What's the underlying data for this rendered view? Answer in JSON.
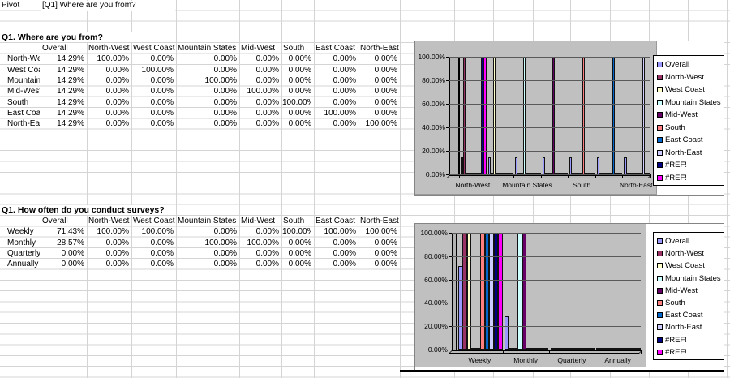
{
  "row1": {
    "cell_a": "Pivot",
    "cell_b": "[Q1] Where are you from?"
  },
  "tables": [
    {
      "title": "Q1. Where are you from?",
      "columns": [
        "Overall",
        "North-West",
        "West Coast",
        "Mountain States",
        "Mid-West",
        "South",
        "East Coast",
        "North-East"
      ],
      "rows": [
        {
          "label": "North-West",
          "values": [
            "14.29%",
            "100.00%",
            "0.00%",
            "0.00%",
            "0.00%",
            "0.00%",
            "0.00%",
            "0.00%"
          ]
        },
        {
          "label": "West Coast",
          "values": [
            "14.29%",
            "0.00%",
            "100.00%",
            "0.00%",
            "0.00%",
            "0.00%",
            "0.00%",
            "0.00%"
          ]
        },
        {
          "label": "Mountain States",
          "values": [
            "14.29%",
            "0.00%",
            "0.00%",
            "100.00%",
            "0.00%",
            "0.00%",
            "0.00%",
            "0.00%"
          ]
        },
        {
          "label": "Mid-West",
          "values": [
            "14.29%",
            "0.00%",
            "0.00%",
            "0.00%",
            "100.00%",
            "0.00%",
            "0.00%",
            "0.00%"
          ]
        },
        {
          "label": "South",
          "values": [
            "14.29%",
            "0.00%",
            "0.00%",
            "0.00%",
            "0.00%",
            "100.00%",
            "0.00%",
            "0.00%"
          ]
        },
        {
          "label": "East Coast",
          "values": [
            "14.29%",
            "0.00%",
            "0.00%",
            "0.00%",
            "0.00%",
            "0.00%",
            "100.00%",
            "0.00%"
          ]
        },
        {
          "label": "North-East",
          "values": [
            "14.29%",
            "0.00%",
            "0.00%",
            "0.00%",
            "0.00%",
            "0.00%",
            "0.00%",
            "100.00%"
          ]
        }
      ]
    },
    {
      "title": "Q1. How often do you conduct surveys?",
      "columns": [
        "Overall",
        "North-West",
        "West Coast",
        "Mountain States",
        "Mid-West",
        "South",
        "East Coast",
        "North-East"
      ],
      "rows": [
        {
          "label": "Weekly",
          "values": [
            "71.43%",
            "100.00%",
            "100.00%",
            "0.00%",
            "0.00%",
            "100.00%",
            "100.00%",
            "100.00%"
          ]
        },
        {
          "label": "Monthly",
          "values": [
            "28.57%",
            "0.00%",
            "0.00%",
            "100.00%",
            "100.00%",
            "0.00%",
            "0.00%",
            "0.00%"
          ]
        },
        {
          "label": "Quarterly",
          "values": [
            "0.00%",
            "0.00%",
            "0.00%",
            "0.00%",
            "0.00%",
            "0.00%",
            "0.00%",
            "0.00%"
          ]
        },
        {
          "label": "Annually",
          "values": [
            "0.00%",
            "0.00%",
            "0.00%",
            "0.00%",
            "0.00%",
            "0.00%",
            "0.00%",
            "0.00%"
          ]
        }
      ]
    }
  ],
  "chart_data": [
    {
      "type": "bar",
      "title": "",
      "categories": [
        "North-West",
        "West Coast",
        "Mountain States",
        "Mid-West",
        "South",
        "East Coast",
        "North-East"
      ],
      "x_labels_shown": [
        "North-West",
        "Mountain States",
        "South",
        "North-East"
      ],
      "label_every": 2,
      "y_ticks": [
        "100.00%",
        "80.00%",
        "60.00%",
        "40.00%",
        "20.00%",
        "0.00%"
      ],
      "ylim": [
        0,
        100
      ],
      "grid": true,
      "legend_position": "right",
      "plot_bg": "#c0c0c0",
      "series": [
        {
          "name": "Overall",
          "color": "#9999ff",
          "values": [
            14.29,
            14.29,
            14.29,
            14.29,
            14.29,
            14.29,
            14.29
          ]
        },
        {
          "name": "North-West",
          "color": "#993366",
          "values": [
            100,
            0,
            0,
            0,
            0,
            0,
            0
          ]
        },
        {
          "name": "West Coast",
          "color": "#ffffcc",
          "values": [
            0,
            100,
            0,
            0,
            0,
            0,
            0
          ]
        },
        {
          "name": "Mountain States",
          "color": "#ccffff",
          "values": [
            0,
            0,
            100,
            0,
            0,
            0,
            0
          ]
        },
        {
          "name": "Mid-West",
          "color": "#660066",
          "values": [
            0,
            0,
            0,
            100,
            0,
            0,
            0
          ]
        },
        {
          "name": "South",
          "color": "#ff8080",
          "values": [
            0,
            0,
            0,
            0,
            100,
            0,
            0
          ]
        },
        {
          "name": "East Coast",
          "color": "#0066cc",
          "values": [
            0,
            0,
            0,
            0,
            0,
            100,
            0
          ]
        },
        {
          "name": "North-East",
          "color": "#ccccff",
          "values": [
            0,
            0,
            0,
            0,
            0,
            0,
            100
          ]
        },
        {
          "name": "#REF!",
          "color": "#000080",
          "values": [
            100,
            0,
            0,
            0,
            0,
            0,
            0
          ]
        },
        {
          "name": "#REF!",
          "color": "#ff00ff",
          "values": [
            100,
            0,
            0,
            0,
            0,
            0,
            0
          ]
        }
      ]
    },
    {
      "type": "bar",
      "title": "",
      "categories": [
        "Weekly",
        "Monthly",
        "Quarterly",
        "Annually"
      ],
      "x_labels_shown": [
        "Weekly",
        "Monthly",
        "Quarterly",
        "Annually"
      ],
      "label_every": 1,
      "y_ticks": [
        "100.00%",
        "80.00%",
        "60.00%",
        "40.00%",
        "20.00%",
        "0.00%"
      ],
      "ylim": [
        0,
        100
      ],
      "grid": true,
      "legend_position": "right",
      "plot_bg": "#c0c0c0",
      "series": [
        {
          "name": "Overall",
          "color": "#9999ff",
          "values": [
            71.43,
            28.57,
            0,
            0
          ]
        },
        {
          "name": "North-West",
          "color": "#993366",
          "values": [
            100,
            0,
            0,
            0
          ]
        },
        {
          "name": "West Coast",
          "color": "#ffffcc",
          "values": [
            100,
            0,
            0,
            0
          ]
        },
        {
          "name": "Mountain States",
          "color": "#ccffff",
          "values": [
            0,
            100,
            0,
            0
          ]
        },
        {
          "name": "Mid-West",
          "color": "#660066",
          "values": [
            0,
            100,
            0,
            0
          ]
        },
        {
          "name": "South",
          "color": "#ff8080",
          "values": [
            100,
            0,
            0,
            0
          ]
        },
        {
          "name": "East Coast",
          "color": "#0066cc",
          "values": [
            100,
            0,
            0,
            0
          ]
        },
        {
          "name": "North-East",
          "color": "#ccccff",
          "values": [
            100,
            0,
            0,
            0
          ]
        },
        {
          "name": "#REF!",
          "color": "#000080",
          "values": [
            100,
            0,
            0,
            0
          ]
        },
        {
          "name": "#REF!",
          "color": "#ff00ff",
          "values": [
            100,
            0,
            0,
            0
          ]
        }
      ]
    }
  ]
}
